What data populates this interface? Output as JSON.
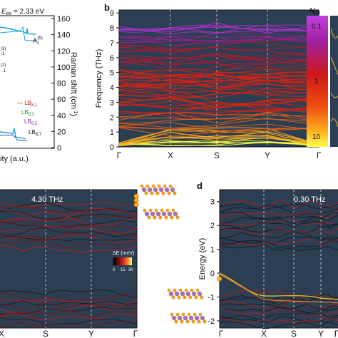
{
  "panel_labels": {
    "b": "b",
    "d": "d"
  },
  "colors": {
    "dark_panel": "#2b3e52",
    "phonon_low": "#ffff40",
    "phonon_mid": "#e02010",
    "phonon_high": "#b020c0",
    "band_dark": "#111111",
    "panel_a_peak": "#1aa0d6"
  },
  "panel_a": {
    "eex_label": "E",
    "eex_sub": "ex",
    "eex_value": " = 2.33 eV",
    "peak_label": "A",
    "peak_sub": "1",
    "peak_sup": "(5)",
    "lb_81": "LB",
    "lb_81_sub": "8,1",
    "lb_83": "LB",
    "lb_83_sub": "8,3",
    "lb_85": "LB",
    "lb_85_sub": "8,5",
    "lb_87": "LB",
    "lb_87_sub": "8,7",
    "partial_labels": [
      "(3)",
      "-1",
      "(2)",
      "- 1"
    ],
    "xlabel": "ity (a.u.)",
    "ylabel": "Raman shift (cm",
    "ylabel_sup": "-1",
    "ylabel_end": ")",
    "ytick_labels": [
      "0",
      "20",
      "40",
      "60",
      "80",
      "100",
      "120",
      "140",
      "160"
    ],
    "yticks": [
      0,
      20,
      40,
      60,
      80,
      100,
      120,
      140,
      160
    ]
  },
  "panel_b": {
    "ylabel": "Frequency (THz)",
    "ytick_labels": [
      "0",
      "1",
      "2",
      "3",
      "4",
      "5",
      "6",
      "7",
      "8",
      "9"
    ],
    "yticks": [
      0,
      1,
      2,
      3,
      4,
      5,
      6,
      7,
      8,
      9
    ],
    "kpoints": [
      "Γ",
      "X",
      "S",
      "Y",
      "Γ"
    ],
    "colorbar_title": "N",
    "colorbar_title_sub": "ph",
    "colorbar_labels": [
      "0.1",
      "1",
      "10"
    ]
  },
  "panel_c": {
    "freq_label": "4.30 THz",
    "kpoints": [
      "X",
      "S",
      "Y",
      "Γ"
    ],
    "cbar_title": "ΔE (meV)",
    "cbar_labels": [
      "0",
      "15",
      "30"
    ]
  },
  "panel_d": {
    "freq_label": "0.30 THz",
    "ylabel": "Energy (eV)",
    "ytick_labels": [
      "3",
      "2",
      "1",
      "0",
      "-1",
      "-2"
    ],
    "yticks": [
      3,
      2,
      1,
      0,
      -1,
      -2
    ],
    "kpoints": [
      "Γ",
      "X",
      "S",
      "Y",
      "Γ"
    ]
  }
}
